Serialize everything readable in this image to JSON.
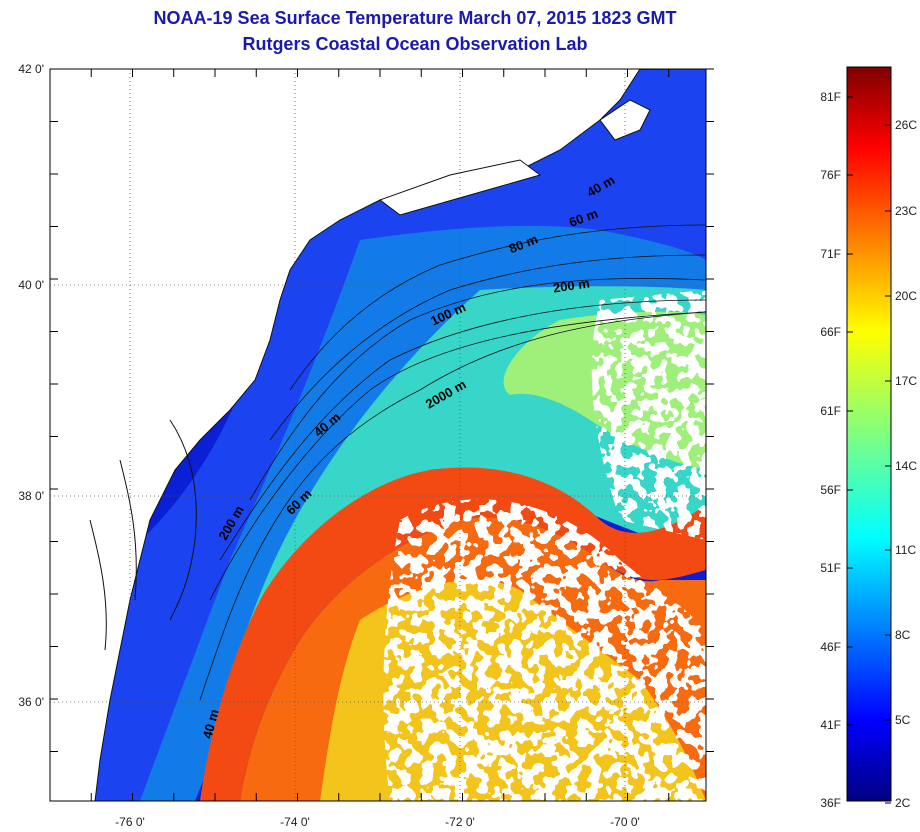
{
  "title": {
    "line1": "NOAA-19 Sea Surface Temperature March 07, 2015 1823 GMT",
    "line2": "Rutgers Coastal Ocean Observation Lab"
  },
  "map": {
    "lat_labels": [
      "42 0'",
      "40 0'",
      "38 0'",
      "36 0'"
    ],
    "lon_labels": [
      "-76 0'",
      "-74 0'",
      "-72 0'",
      "-70 0'"
    ],
    "contour_labels": [
      "60 m",
      "80 m",
      "200 m",
      "100 m",
      "2000 m",
      "40 m",
      "60 m",
      "200 m",
      "40 m",
      "40 m"
    ]
  },
  "colorbar": {
    "fahrenheit": [
      "81F",
      "76F",
      "71F",
      "66F",
      "61F",
      "56F",
      "51F",
      "46F",
      "41F",
      "36F"
    ],
    "celsius": [
      "26C",
      "23C",
      "20C",
      "17C",
      "14C",
      "11C",
      "8C",
      "5C",
      "2C"
    ],
    "colors": [
      "#00007f",
      "#0000ff",
      "#007fff",
      "#00ffff",
      "#7fff7f",
      "#ffff00",
      "#ff7f00",
      "#ff0000",
      "#7f0000"
    ]
  }
}
